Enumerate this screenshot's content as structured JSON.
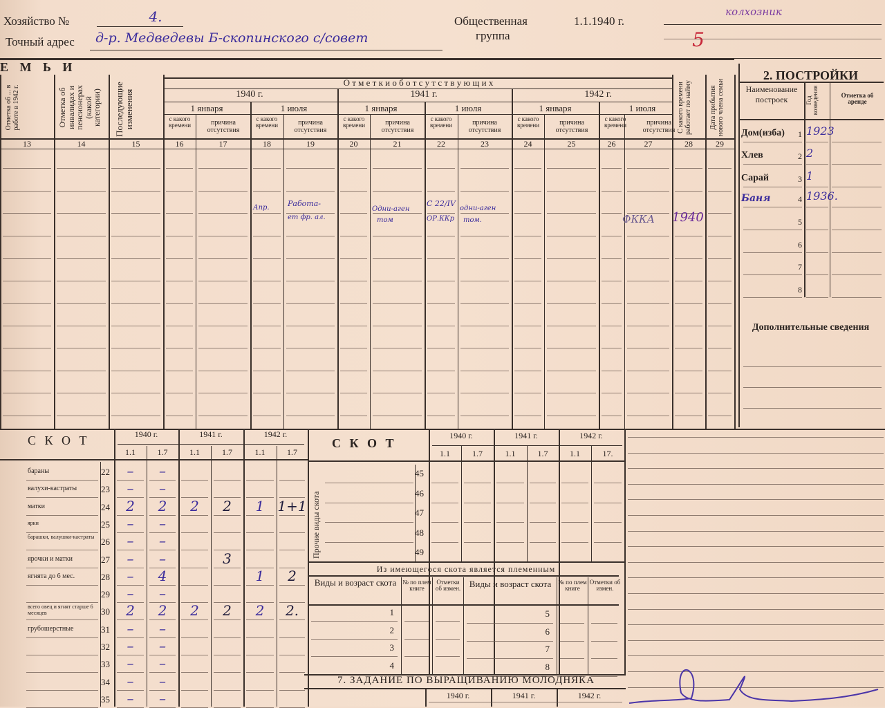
{
  "header": {
    "household_label": "Хозяйство №",
    "household_no": "4.",
    "address_label": "Точный адрес",
    "address_value": "д-р. Медведевы Б-скопинского с/совет",
    "group_label_1": "Общественная",
    "group_label_2": "группа",
    "date": "1.1.1940 г.",
    "group_value": "колхозник",
    "group_mark": "5"
  },
  "family": {
    "section_title": "Е М Ь И",
    "col13": "Отметка об ... в работе в 1942 г.",
    "col14": "Отметка об инвалидах и пенсионерах (какой категории)",
    "col15": "Последующие изменения",
    "absent_title": "О т м е т к и   о б   о т с у т с т в у ю щ и х",
    "years": [
      "1940 г.",
      "1941 г.",
      "1942 г."
    ],
    "months": [
      "1 января",
      "1 июля",
      "1 января",
      "1 июля",
      "1 января",
      "1 июля"
    ],
    "sub_since": "с какого времени",
    "sub_reason": "причина отсутствия",
    "col28": "С какого времени работает по найму",
    "col29": "Дата прибытия нового члена семьи",
    "col_numbers": [
      "13",
      "14",
      "15",
      "16",
      "17",
      "18",
      "19",
      "20",
      "21",
      "22",
      "23",
      "24",
      "25",
      "26",
      "27",
      "28",
      "29"
    ],
    "entries": {
      "c18": "Апр.",
      "c19_1": "Работа-",
      "c19_2": "ет фр. ал.",
      "c21_1": "Одни-аген",
      "c21_2": "том",
      "c22_1": "С 22/IV",
      "c22_2": "ОР.ККр",
      "c23_1": "одни-аген",
      "c23_2": "том.",
      "c27": "ФККА",
      "c28": "1940"
    }
  },
  "buildings": {
    "title": "2. ПОСТРОЙКИ",
    "col_name": "Наименование построек",
    "col_year": "Год возведения",
    "col_rent": "Отметка об аренде",
    "rows": [
      {
        "name": "Дом(изба)",
        "no": "1",
        "year": "1923"
      },
      {
        "name": "Хлев",
        "no": "2",
        "year": "2"
      },
      {
        "name": "Сарай",
        "no": "3",
        "year": "1"
      },
      {
        "name": "Баня",
        "no": "4",
        "year": "1936."
      },
      {
        "name": "",
        "no": "5",
        "year": ""
      },
      {
        "name": "",
        "no": "6",
        "year": ""
      },
      {
        "name": "",
        "no": "7",
        "year": ""
      },
      {
        "name": "",
        "no": "8",
        "year": ""
      }
    ],
    "additional": "Дополнительные сведения"
  },
  "livestock": {
    "title": "С К О Т",
    "years": [
      "1940 г.",
      "1941 г.",
      "1942 г."
    ],
    "dates": [
      "1.1",
      "1.7",
      "1.1",
      "1.7",
      "1.1",
      "1.7"
    ],
    "rows": [
      {
        "label": "бараны",
        "no": "22",
        "v": [
          "–",
          "–",
          "",
          "",
          "",
          ""
        ]
      },
      {
        "label": "валухи-кастраты",
        "no": "23",
        "v": [
          "–",
          "–",
          "",
          "",
          "",
          ""
        ]
      },
      {
        "label": "матки",
        "no": "24",
        "v": [
          "2",
          "2",
          "2",
          "2",
          "1",
          "1+1"
        ]
      },
      {
        "label": "ярки",
        "no": "25",
        "v": [
          "–",
          "–",
          "",
          "",
          "",
          ""
        ]
      },
      {
        "label": "барашки, валушки-кастраты",
        "no": "26",
        "v": [
          "–",
          "–",
          "",
          "",
          "",
          ""
        ]
      },
      {
        "label": "ярочки и матки",
        "no": "27",
        "v": [
          "–",
          "–",
          "",
          "3",
          "",
          ""
        ]
      },
      {
        "label": "ягнята до 6 мес.",
        "no": "28",
        "v": [
          "–",
          "4",
          "",
          "",
          "1",
          "2"
        ]
      },
      {
        "label": "",
        "no": "29",
        "v": [
          "–",
          "–",
          "",
          "",
          "",
          ""
        ]
      },
      {
        "label": "всего овец и ягнят старше 6 месяцев",
        "no": "30",
        "v": [
          "2",
          "2",
          "2",
          "2",
          "2",
          "2."
        ]
      },
      {
        "label": "грубошерстные",
        "no": "31",
        "v": [
          "–",
          "–",
          "",
          "",
          "",
          ""
        ]
      },
      {
        "label": "",
        "no": "32",
        "v": [
          "–",
          "–",
          "",
          "",
          "",
          ""
        ]
      },
      {
        "label": "",
        "no": "33",
        "v": [
          "–",
          "–",
          "",
          "",
          "",
          ""
        ]
      },
      {
        "label": "",
        "no": "34",
        "v": [
          "–",
          "–",
          "",
          "",
          "",
          ""
        ]
      },
      {
        "label": "",
        "no": "35",
        "v": [
          "–",
          "–",
          "",
          "",
          "",
          ""
        ]
      }
    ]
  },
  "other_livestock": {
    "title": "С К О Т",
    "years": [
      "1940 г.",
      "1941 г.",
      "1942 г."
    ],
    "dates": [
      "1.1",
      "1.7",
      "1.1",
      "1.7",
      "1.1",
      "17."
    ],
    "side_label": "Прочие виды скота",
    "rows": [
      "45",
      "46",
      "47",
      "48",
      "49"
    ],
    "breeding_title": "Из имеющегося скота является племенным",
    "col_kind": "Виды и возраст скота",
    "col_book": "№ по плем книге",
    "col_changes": "Отметки об измен.",
    "breeding_left": [
      "1",
      "2",
      "3",
      "4"
    ],
    "breeding_right": [
      "5",
      "6",
      "7",
      "8"
    ]
  },
  "young_stock": {
    "title": "7. ЗАДАНИЕ ПО ВЫРАЩИВАНИЮ МОЛОДНЯКА",
    "years": [
      "1940 г.",
      "1941 г.",
      "1942 г."
    ]
  },
  "colors": {
    "paper": "#f2dccb",
    "ink": "#3a302b",
    "handwriting": "#3b2c9c"
  }
}
